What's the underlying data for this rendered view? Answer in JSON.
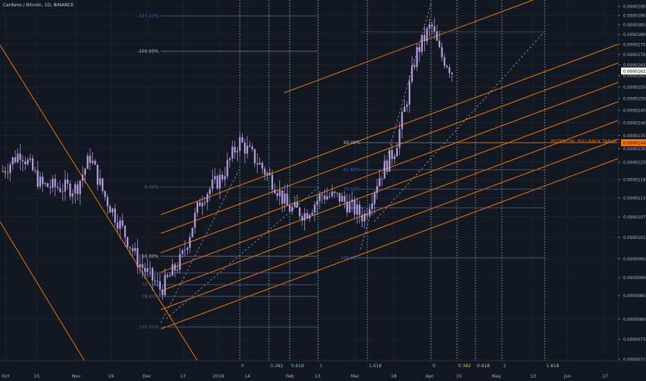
{
  "header": {
    "title": "Cardano / Bitcoin, 1D, BINANCE"
  },
  "colors": {
    "background": "#131722",
    "grid": "#1c2030",
    "axis_text": "#b2b5be",
    "candle": "#b39ddb",
    "pitchfork": "#f57c00",
    "fib_line": "#5b6b8c",
    "fib_blue_text": "#3f66b0",
    "time_fib": "#4dd0c4",
    "time_fib_yellow": "#c8c86a",
    "price_tag_bg": "#ffffff",
    "target_tag_bg": "#f57c00",
    "target_text": "#f57c00"
  },
  "chart_data": {
    "type": "candlestick",
    "symbol": "Cardano / Bitcoin",
    "interval": "1D",
    "exchange": "BINANCE",
    "y_scale": "log",
    "ylim": [
      7.1e-06,
      1.97e-05
    ],
    "y_ticks": [
      "0.00001950",
      "0.00001900",
      "0.00001850",
      "0.00001800",
      "0.00001750",
      "0.00001700",
      "0.00001650",
      "0.00001600",
      "0.00001550",
      "0.00001500",
      "0.00001450",
      "0.00001400",
      "0.00001350",
      "0.00001300",
      "0.00001250",
      "0.00001190",
      "0.00001130",
      "0.00001070",
      "0.00001010",
      "0.00000950",
      "0.00000900",
      "0.00000855",
      "0.00000800",
      "0.00000755",
      "0.00000713"
    ],
    "x_ticks": [
      "Oct",
      "15",
      "Nov",
      "19",
      "Dec",
      "17",
      "2019",
      "14",
      "Feb",
      "13",
      "Mar",
      "18",
      "Apr",
      "15",
      "May",
      "13",
      "Jun",
      "17"
    ],
    "current_price": "0.00001622",
    "target_price": "0.00001444",
    "annotation": "POTENTIAL PULLBACK TARGET",
    "fib_retracement_1": [
      "100.00%",
      "78.60%",
      "70.50%",
      "61.80%",
      "50.00%"
    ],
    "fib_retracement_2": [
      "-127.20%",
      "-100.00%",
      "0.00%",
      "50.00%",
      "61.80%",
      "70.50%",
      "78.60%",
      "100.00%"
    ],
    "time_fib_1": [
      "0",
      "0.382",
      "0.618",
      "1",
      "1.618"
    ],
    "time_fib_2": [
      "0",
      "0.382",
      "0.618",
      "1",
      "1.618"
    ],
    "candles_close_approx": [
      {
        "phase": "Oct",
        "value": 1.25e-05
      },
      {
        "phase": "Nov",
        "value": 1.15e-05
      },
      {
        "phase": "Dec low",
        "value": 8.5e-06
      },
      {
        "phase": "Jan high",
        "value": 1.34e-05
      },
      {
        "phase": "Feb",
        "value": 1.1e-05
      },
      {
        "phase": "Mar",
        "value": 1.1e-05
      },
      {
        "phase": "Apr high",
        "value": 1.9e-05
      },
      {
        "phase": "Apr",
        "value": 1.62e-05
      }
    ]
  }
}
